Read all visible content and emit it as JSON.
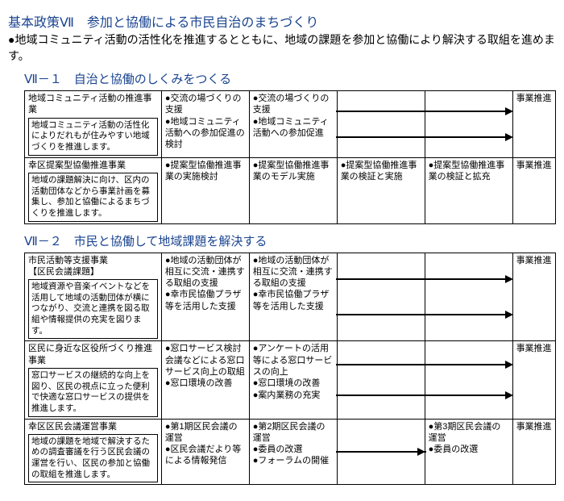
{
  "policy_title": "基本政策Ⅶ　参加と協働による市民自治のまちづくり",
  "policy_desc": "●地域コミュニティ活動の活性化を推進するとともに、地域の課題を参加と協働により解決する取組を進めます。",
  "section1": {
    "title": "Ⅶ－１　自治と協働のしくみをつくる",
    "rows": [
      {
        "proj_title": "地域コミュニティ活動の推進事業",
        "proj_desc": "地域コミュニティ活動の活性化によりだれもが住みやすい地域づくりを推進します。",
        "c1": "●交流の場づくりの支援\n●地域コミュニティ活動への参加促進の検討",
        "c2": "●交流の場づくりの支援\n●地域コミュニティ活動への参加促進",
        "c3": "",
        "c4": "",
        "c5": "事業推進",
        "arrows_c2": 2
      },
      {
        "proj_title": "幸区提案型協働推進事業",
        "proj_desc": "地域の課題解決に向け、区内の活動団体などから事業計画を募集し、参加と協働によるまちづくりを推進します。",
        "c1": "●提案型協働推進事業の実施検討",
        "c2": "●提案型協働推進事業のモデル実施",
        "c3": "●提案型協働推進事業の検証と実施",
        "c4": "●提案型協働推進事業の検証と拡充",
        "c5": "事業推進"
      }
    ]
  },
  "section2": {
    "title": "Ⅶ－２　市民と協働して地域課題を解決する",
    "rows": [
      {
        "proj_title": "市民活動等支援事業\n【区民会議課題】",
        "proj_desc": "地域資源や音楽イベントなどを活用して地域の活動団体が横につながり、交流と連携を図る取組や情報提供の充実を図ります。",
        "c1": "●地域の活動団体が相互に交流・連携する取組の支援\n●幸市民協働プラザ等を活用した支援",
        "c2": "●地域の活動団体が相互に交流・連携する取組の支援\n●幸市民協働プラザ等を活用した支援",
        "c3": "",
        "c4": "",
        "c5": "事業推進",
        "arrows_c2": 2
      },
      {
        "proj_title": "区民に身近な区役所づくり推進事業",
        "proj_desc": "窓口サービスの継続的な向上を図り、区民の視点に立った便利で快適な窓口サービスの提供を推進します。",
        "c1": "●窓口サービス検討会議などによる窓口サービス向上の取組\n●窓口環境の改善",
        "c2": "●アンケートの活用等による窓口サービスの向上\n●窓口環境の改善\n●案内業務の充実",
        "c3": "",
        "c4": "",
        "c5": "事業推進",
        "arrows_c2": 2
      },
      {
        "proj_title": "幸区区民会議運営事業",
        "proj_desc": "地域の課題を地域で解決するための調査審議を行う区民会議の運営を行い、区民の参加と協働の取組を推進します。",
        "c1": "●第1期区民会議の運営\n●区民会議だより等による情報発信",
        "c2": "●第2期区民会議の運営\n●委員の改選\n●フォーラムの開催",
        "c3": "",
        "c4": "●第3期区民会議の運営\n●委員の改選",
        "c5": "事業推進",
        "arrows_c2": 1
      }
    ]
  }
}
